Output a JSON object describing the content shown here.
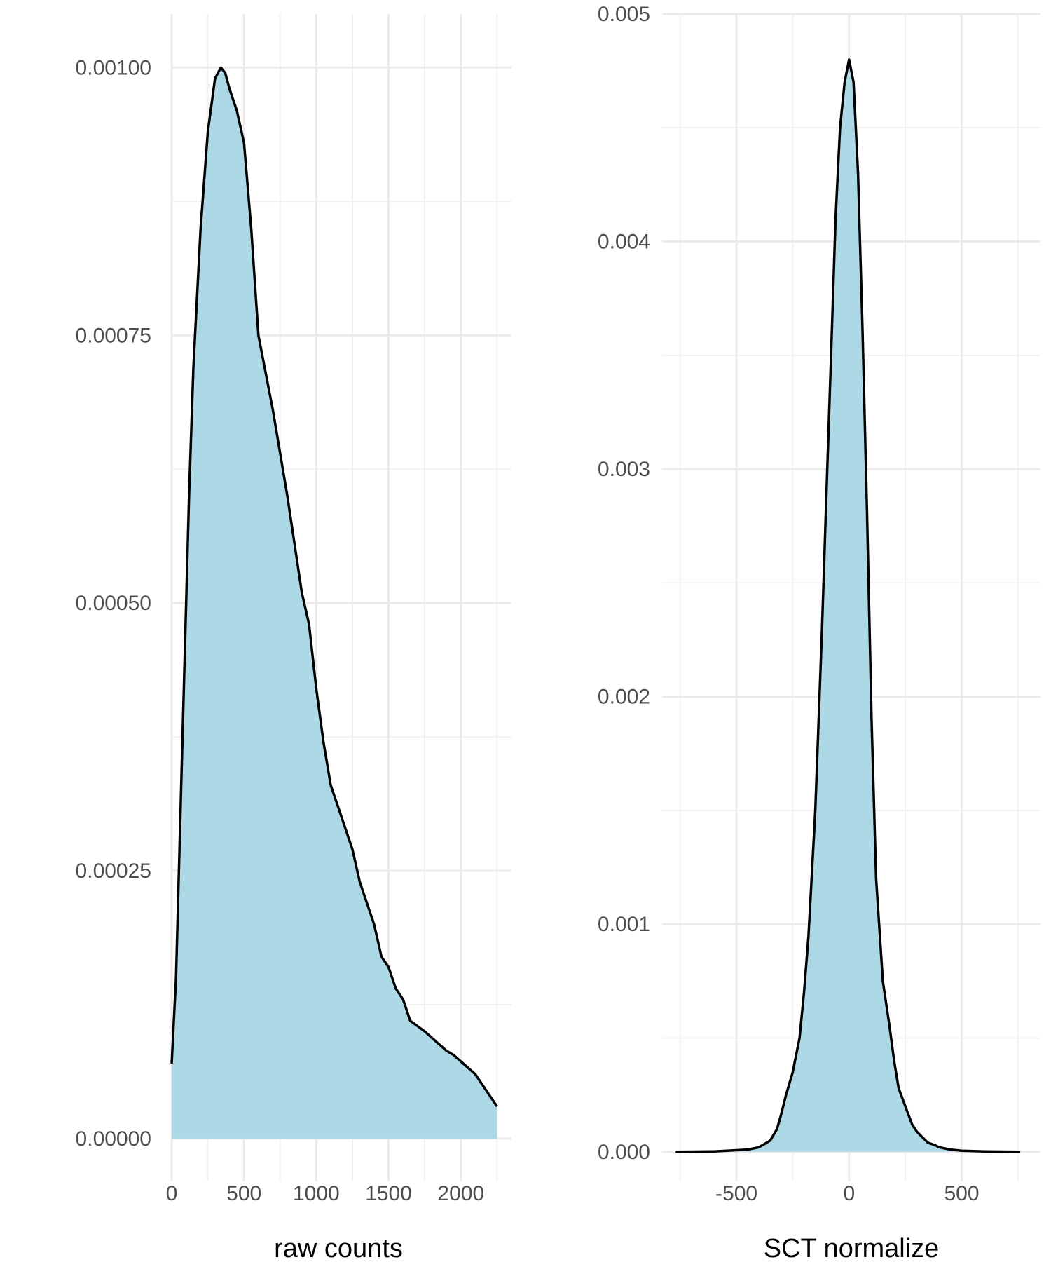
{
  "colors": {
    "fill": "#ADD8E6",
    "line": "#000000",
    "grid_major": "#EBEBEB",
    "grid_minor": "#F2F2F2",
    "tick_text": "#4D4D4D"
  },
  "chart_data": [
    {
      "type": "area",
      "subtype": "density",
      "title": "",
      "xlabel": "raw counts",
      "ylabel": "",
      "xlim": [
        0,
        2350
      ],
      "ylim": [
        -4e-05,
        0.00105
      ],
      "x_ticks": [
        0,
        500,
        1000,
        1500,
        2000
      ],
      "x_tick_labels": [
        "0",
        "500",
        "1000",
        "1500",
        "2000"
      ],
      "y_ticks": [
        0,
        0.00025,
        0.0005,
        0.00075,
        0.001
      ],
      "y_tick_labels": [
        "0.00000",
        "0.00025",
        "0.00050",
        "0.00075",
        "0.00100"
      ],
      "grid": true,
      "legend": "none",
      "series": [
        {
          "x": [
            0,
            30,
            60,
            90,
            120,
            150,
            200,
            250,
            300,
            340,
            370,
            400,
            450,
            500,
            550,
            600,
            700,
            800,
            900,
            950,
            1000,
            1050,
            1100,
            1200,
            1250,
            1300,
            1350,
            1400,
            1450,
            1500,
            1550,
            1600,
            1650,
            1700,
            1750,
            1800,
            1850,
            1900,
            1950,
            2000,
            2050,
            2100,
            2150,
            2200,
            2250
          ],
          "y": [
            7e-05,
            0.00015,
            0.0003,
            0.00045,
            0.0006,
            0.00072,
            0.00085,
            0.00094,
            0.00099,
            0.001,
            0.000995,
            0.00098,
            0.00096,
            0.00093,
            0.00085,
            0.00075,
            0.00068,
            0.0006,
            0.00051,
            0.00048,
            0.00042,
            0.00037,
            0.00033,
            0.00029,
            0.00027,
            0.00024,
            0.00022,
            0.0002,
            0.00017,
            0.00016,
            0.00014,
            0.00013,
            0.00011,
            0.000105,
            0.0001,
            9.4e-05,
            8.8e-05,
            8.2e-05,
            7.8e-05,
            7.2e-05,
            6.6e-05,
            6e-05,
            5e-05,
            4e-05,
            3e-05
          ]
        }
      ]
    },
    {
      "type": "area",
      "subtype": "density",
      "title": "",
      "xlabel": "SCT normalize",
      "ylabel": "",
      "xlim": [
        -830,
        850
      ],
      "ylim": [
        -0.00013,
        0.005
      ],
      "x_ticks": [
        -500,
        0,
        500
      ],
      "x_tick_labels": [
        "-500",
        "0",
        "500"
      ],
      "y_ticks": [
        0,
        0.001,
        0.002,
        0.003,
        0.004,
        0.005
      ],
      "y_tick_labels": [
        "0.000",
        "0.001",
        "0.002",
        "0.003",
        "0.004",
        "0.005"
      ],
      "grid": true,
      "legend": "none",
      "series": [
        {
          "x": [
            -770,
            -600,
            -450,
            -400,
            -350,
            -320,
            -300,
            -280,
            -250,
            -220,
            -200,
            -180,
            -150,
            -120,
            -100,
            -80,
            -60,
            -40,
            -20,
            0,
            20,
            40,
            60,
            80,
            100,
            120,
            150,
            180,
            200,
            220,
            250,
            280,
            300,
            320,
            350,
            380,
            400,
            450,
            500,
            600,
            760
          ],
          "y": [
            0,
            2e-06,
            1e-05,
            2e-05,
            5e-05,
            0.0001,
            0.00017,
            0.00025,
            0.00035,
            0.0005,
            0.0007,
            0.00095,
            0.0015,
            0.0023,
            0.0029,
            0.0035,
            0.0041,
            0.0045,
            0.0047,
            0.0048,
            0.0047,
            0.0043,
            0.0036,
            0.0028,
            0.0019,
            0.0012,
            0.00075,
            0.00055,
            0.0004,
            0.00028,
            0.0002,
            0.00012,
            9e-05,
            7e-05,
            4e-05,
            3e-05,
            2e-05,
            1e-05,
            5e-06,
            2e-06,
            0
          ]
        }
      ]
    }
  ]
}
